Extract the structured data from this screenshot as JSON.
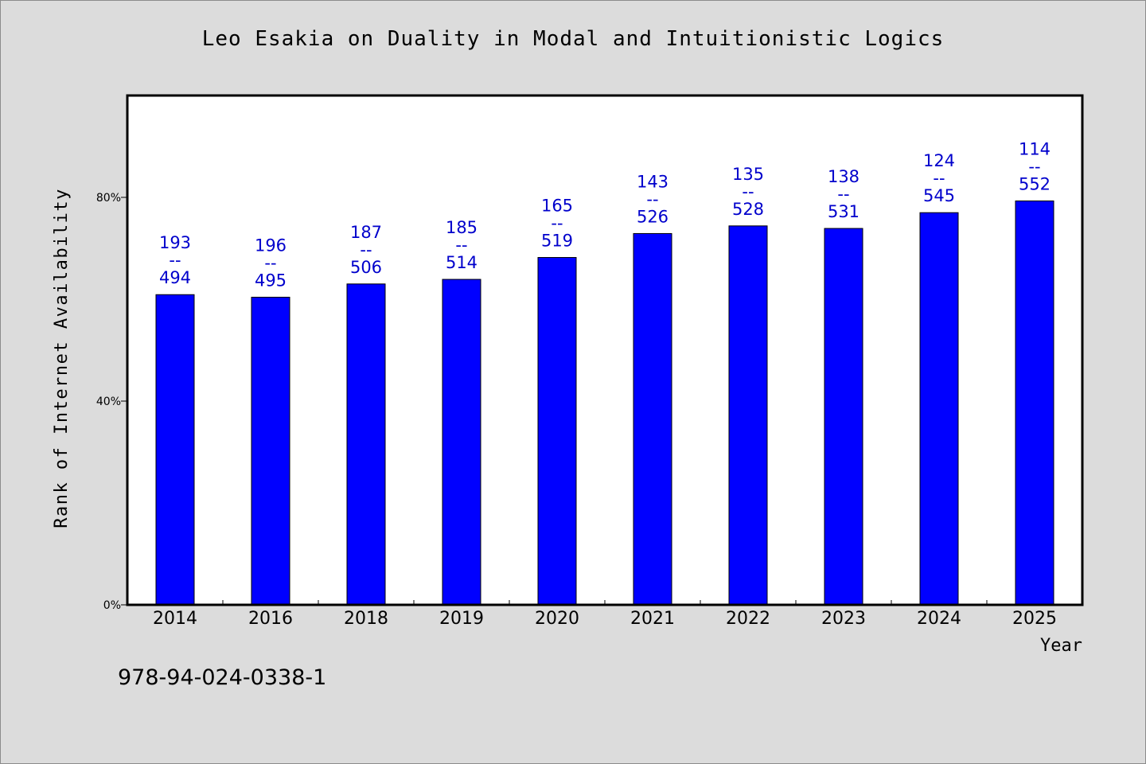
{
  "chart_data": {
    "type": "bar",
    "title": "Leo Esakia on Duality in Modal and Intuitionistic Logics",
    "xlabel": "Year",
    "ylabel": "Rank of Internet Availability",
    "categories": [
      "2014",
      "2016",
      "2018",
      "2019",
      "2020",
      "2021",
      "2022",
      "2023",
      "2024",
      "2025"
    ],
    "series": [
      {
        "values": [
          60.9,
          60.4,
          63.0,
          63.9,
          68.2,
          72.9,
          74.4,
          73.9,
          77.0,
          79.3
        ],
        "data_labels": [
          [
            "193",
            "--",
            "494"
          ],
          [
            "196",
            "--",
            "495"
          ],
          [
            "187",
            "--",
            "506"
          ],
          [
            "185",
            "--",
            "514"
          ],
          [
            "165",
            "--",
            "519"
          ],
          [
            "143",
            "--",
            "526"
          ],
          [
            "135",
            "--",
            "528"
          ],
          [
            "138",
            "--",
            "531"
          ],
          [
            "124",
            "--",
            "545"
          ],
          [
            "114",
            "--",
            "552"
          ]
        ]
      }
    ],
    "ylim": [
      0,
      100
    ],
    "yticks": [
      0,
      40,
      80
    ],
    "ytick_labels": [
      "0%",
      "40%",
      "80%"
    ],
    "grid": false,
    "legend": "none",
    "bar_color": "#0000ff",
    "label_color": "#0000cc"
  },
  "footer": {
    "isbn": "978-94-024-0338-1"
  },
  "colors": {
    "background": "#dcdcdc",
    "plot_background": "#ffffff"
  }
}
